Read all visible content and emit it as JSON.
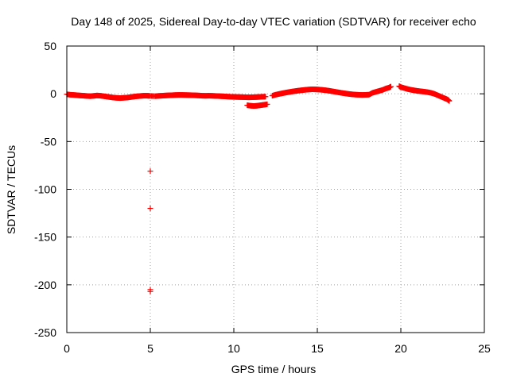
{
  "chart_data": {
    "type": "scatter",
    "title": "Day 148 of 2025, Sidereal Day-to-day VTEC variation (SDTVAR) for receiver echo",
    "xlabel": "GPS time / hours",
    "ylabel": "SDTVAR / TECUs",
    "xlim": [
      0,
      25
    ],
    "ylim": [
      -250,
      50
    ],
    "xticks": [
      0,
      5,
      10,
      15,
      20,
      25
    ],
    "yticks": [
      50,
      0,
      -50,
      -100,
      -150,
      -200,
      -250
    ],
    "grid": true,
    "marker": "+",
    "color": "#ff0000",
    "series": [
      {
        "name": "SDTVAR",
        "points": [
          [
            0.0,
            -0.5
          ],
          [
            0.2,
            -1.0
          ],
          [
            0.4,
            -1.2
          ],
          [
            0.6,
            -1.5
          ],
          [
            0.8,
            -1.8
          ],
          [
            1.0,
            -2.0
          ],
          [
            1.2,
            -2.3
          ],
          [
            1.4,
            -2.5
          ],
          [
            1.6,
            -2.2
          ],
          [
            1.8,
            -1.8
          ],
          [
            2.0,
            -2.0
          ],
          [
            2.2,
            -2.5
          ],
          [
            2.4,
            -3.0
          ],
          [
            2.6,
            -3.5
          ],
          [
            2.8,
            -4.0
          ],
          [
            3.0,
            -4.3
          ],
          [
            3.2,
            -4.5
          ],
          [
            3.4,
            -4.2
          ],
          [
            3.6,
            -4.0
          ],
          [
            3.8,
            -3.5
          ],
          [
            4.0,
            -3.0
          ],
          [
            4.2,
            -2.6
          ],
          [
            4.4,
            -2.3
          ],
          [
            4.6,
            -2.0
          ],
          [
            4.8,
            -2.0
          ],
          [
            4.95,
            -2.2
          ],
          [
            5.3,
            -2.5
          ],
          [
            5.5,
            -2.2
          ],
          [
            5.7,
            -2.0
          ],
          [
            5.9,
            -1.8
          ],
          [
            6.1,
            -1.6
          ],
          [
            6.3,
            -1.5
          ],
          [
            6.5,
            -1.3
          ],
          [
            6.7,
            -1.2
          ],
          [
            6.9,
            -1.2
          ],
          [
            7.1,
            -1.3
          ],
          [
            7.3,
            -1.4
          ],
          [
            7.5,
            -1.5
          ],
          [
            7.7,
            -1.6
          ],
          [
            7.9,
            -1.8
          ],
          [
            8.1,
            -2.0
          ],
          [
            8.3,
            -2.1
          ],
          [
            8.5,
            -2.0
          ],
          [
            8.7,
            -2.1
          ],
          [
            8.9,
            -2.3
          ],
          [
            9.1,
            -2.4
          ],
          [
            9.3,
            -2.6
          ],
          [
            9.5,
            -2.8
          ],
          [
            9.7,
            -3.0
          ],
          [
            9.9,
            -3.2
          ],
          [
            10.1,
            -3.3
          ],
          [
            10.3,
            -3.4
          ],
          [
            10.5,
            -3.5
          ],
          [
            10.7,
            -3.6
          ],
          [
            10.9,
            -3.7
          ],
          [
            11.1,
            -3.6
          ],
          [
            11.3,
            -3.5
          ],
          [
            11.5,
            -3.3
          ],
          [
            11.7,
            -3.1
          ],
          [
            11.9,
            -3.0
          ],
          [
            10.8,
            -12.0
          ],
          [
            11.0,
            -12.5
          ],
          [
            11.2,
            -12.8
          ],
          [
            11.4,
            -12.5
          ],
          [
            11.6,
            -12.0
          ],
          [
            11.8,
            -11.5
          ],
          [
            12.0,
            -11.0
          ],
          [
            12.3,
            -2.0
          ],
          [
            12.5,
            -1.0
          ],
          [
            12.7,
            -0.2
          ],
          [
            12.9,
            0.5
          ],
          [
            13.1,
            1.2
          ],
          [
            13.3,
            1.8
          ],
          [
            13.5,
            2.4
          ],
          [
            13.7,
            2.9
          ],
          [
            13.9,
            3.4
          ],
          [
            14.1,
            3.8
          ],
          [
            14.3,
            4.2
          ],
          [
            14.5,
            4.5
          ],
          [
            14.7,
            4.7
          ],
          [
            14.9,
            4.6
          ],
          [
            15.1,
            4.4
          ],
          [
            15.3,
            4.1
          ],
          [
            15.5,
            3.7
          ],
          [
            15.7,
            3.2
          ],
          [
            15.9,
            2.6
          ],
          [
            16.1,
            2.0
          ],
          [
            16.3,
            1.4
          ],
          [
            16.5,
            0.8
          ],
          [
            16.7,
            0.3
          ],
          [
            16.9,
            -0.2
          ],
          [
            17.1,
            -0.6
          ],
          [
            17.3,
            -0.9
          ],
          [
            17.5,
            -1.1
          ],
          [
            17.7,
            -1.2
          ],
          [
            17.9,
            -1.1
          ],
          [
            18.1,
            -0.9
          ],
          [
            18.3,
            1.0
          ],
          [
            18.5,
            2.0
          ],
          [
            18.7,
            3.0
          ],
          [
            18.9,
            4.0
          ],
          [
            19.1,
            5.5
          ],
          [
            19.3,
            6.5
          ],
          [
            19.4,
            7.5
          ],
          [
            19.9,
            8.0
          ],
          [
            20.0,
            7.0
          ],
          [
            20.2,
            6.0
          ],
          [
            20.4,
            5.0
          ],
          [
            20.6,
            4.2
          ],
          [
            20.8,
            3.6
          ],
          [
            21.0,
            3.0
          ],
          [
            21.2,
            2.6
          ],
          [
            21.4,
            2.2
          ],
          [
            21.6,
            1.7
          ],
          [
            21.8,
            1.0
          ],
          [
            22.0,
            0.0
          ],
          [
            22.2,
            -1.5
          ],
          [
            22.4,
            -3.0
          ],
          [
            22.6,
            -4.5
          ],
          [
            22.8,
            -6.0
          ],
          [
            22.9,
            -7.5
          ],
          [
            5.0,
            -81.0
          ],
          [
            5.0,
            -120.0
          ],
          [
            5.0,
            -205.0
          ],
          [
            5.0,
            -207.0
          ]
        ]
      }
    ]
  }
}
